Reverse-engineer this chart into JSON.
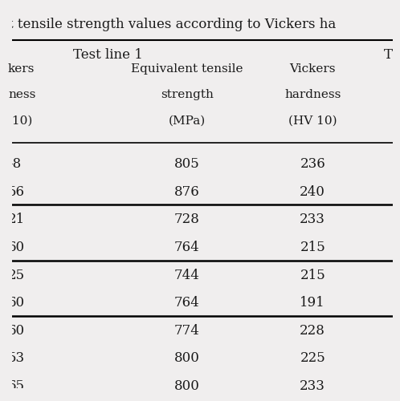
{
  "title": "t tensile strength values according to Vickers ha",
  "section_header": "Test line 1",
  "col_headers": [
    [
      "kers",
      "ness",
      " 10)"
    ],
    [
      "Equivalent tensile",
      "strength",
      "(MPa)"
    ],
    [
      "Vickers",
      "hardness",
      "(HV 10)"
    ]
  ],
  "groups": [
    {
      "rows": [
        [
          "-8",
          "805",
          "236"
        ],
        [
          "56",
          "876",
          "240"
        ]
      ]
    },
    {
      "rows": [
        [
          "21",
          "728",
          "233"
        ],
        [
          "60",
          "764",
          "215"
        ]
      ]
    },
    {
      "rows": [
        [
          "25",
          "744",
          "215"
        ],
        [
          "60",
          "764",
          "191"
        ]
      ]
    },
    {
      "rows": [
        [
          "60",
          "774",
          "228"
        ],
        [
          "53",
          "800",
          "225"
        ],
        [
          "65",
          "800",
          "233"
        ]
      ]
    }
  ],
  "background_color": "#f0eeee",
  "text_color": "#1a1a1a",
  "line_color": "#000000",
  "header_font_size": 11,
  "data_font_size": 12,
  "title_font_size": 12,
  "section_font_size": 12
}
